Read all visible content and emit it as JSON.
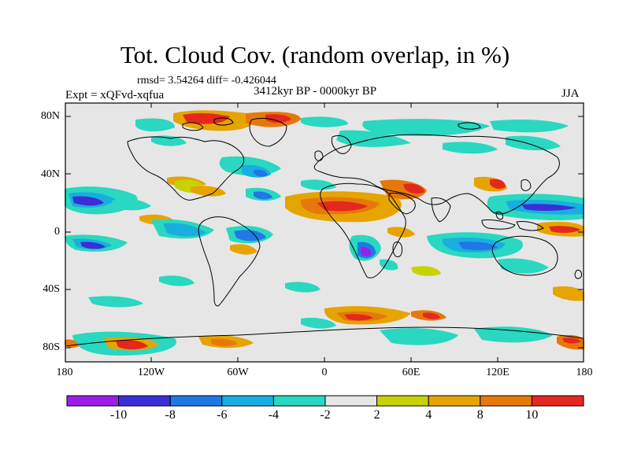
{
  "header": {
    "title": "Tot. Cloud Cov. (random overlap, in %)",
    "stats": "rmsd= 3.54264 diff= -0.426044",
    "period": "3412kyr BP - 0000kyr BP",
    "experiment": "Expt = xQFvd-xqfua",
    "season": "JJA"
  },
  "axes": {
    "y_ticks": [
      "80N",
      "40N",
      "0",
      "40S",
      "80S"
    ],
    "x_ticks": [
      "180",
      "120W",
      "60W",
      "0",
      "60E",
      "120E",
      "180"
    ]
  },
  "colorbar": {
    "colors": [
      "#9b1ee8",
      "#3a2fd6",
      "#1e78e6",
      "#18aee0",
      "#2ad7c0",
      "#e6e6e6",
      "#c8d200",
      "#e6a400",
      "#e6780a",
      "#e4281e"
    ],
    "labels": [
      "-10",
      "-8",
      "-6",
      "-4",
      "-2",
      "2",
      "4",
      "8",
      "10"
    ]
  }
}
